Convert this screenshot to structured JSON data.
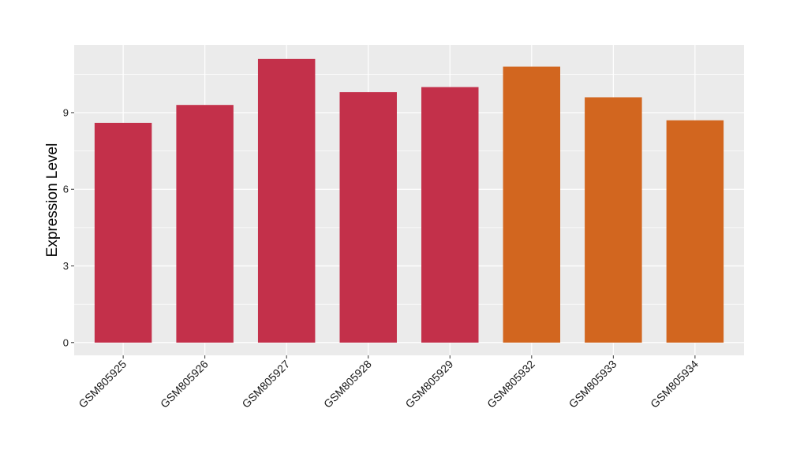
{
  "chart_data": {
    "type": "bar",
    "title": "",
    "xlabel": "",
    "ylabel": "Expression Level",
    "categories": [
      "GSM805925",
      "GSM805926",
      "GSM805927",
      "GSM805928",
      "GSM805929",
      "GSM805932",
      "GSM805933",
      "GSM805934"
    ],
    "values": [
      8.6,
      9.3,
      11.1,
      9.8,
      10.0,
      10.8,
      9.6,
      8.7
    ],
    "bar_colors": [
      "#c3304a",
      "#c3304a",
      "#c3304a",
      "#c3304a",
      "#c3304a",
      "#d2661f",
      "#d2661f",
      "#d2661f"
    ],
    "yticks": [
      0,
      3,
      6,
      9
    ],
    "ylim": [
      -0.5,
      11.65
    ],
    "grid": true,
    "legend": "none",
    "panel_background": "#ebebeb",
    "grid_color": "#ffffff"
  }
}
